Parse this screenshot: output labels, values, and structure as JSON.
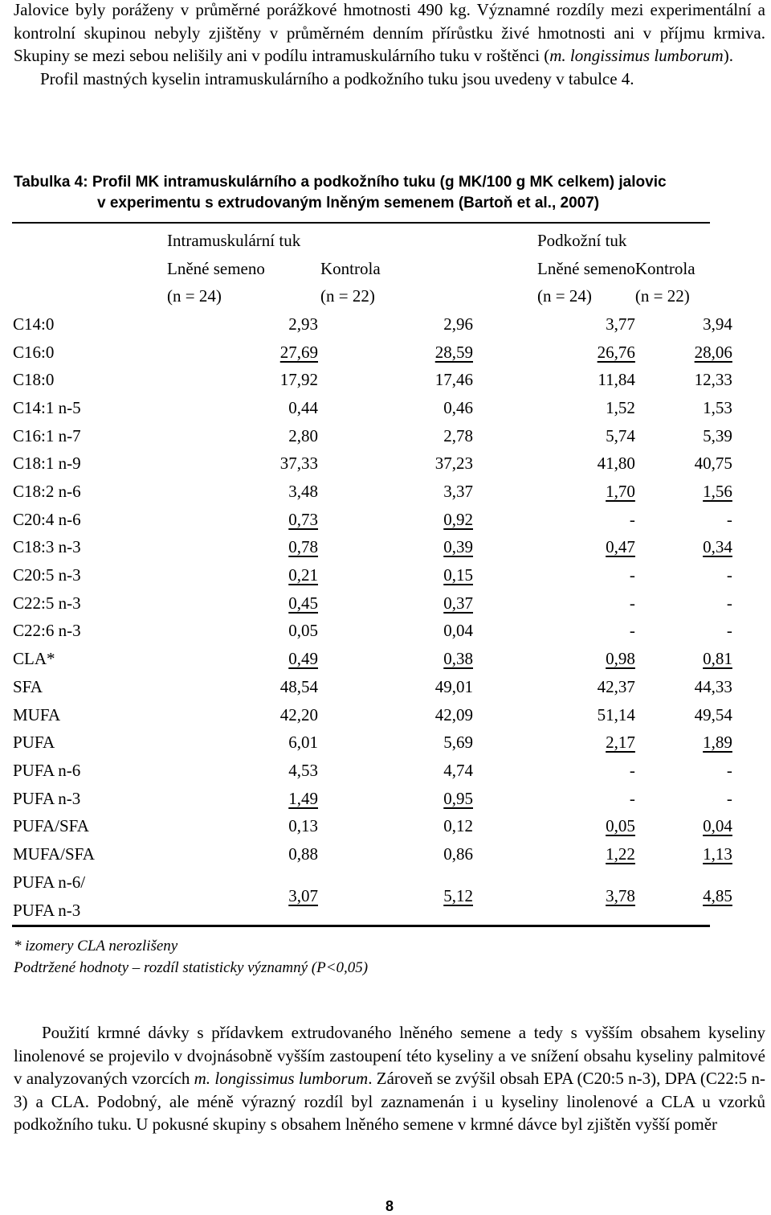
{
  "intro": {
    "sentence1": "Jalovice byly poráženy v průměrné porážkové hmotnosti 490 kg. Významné rozdíly mezi experimentální a kontrolní skupinou nebyly zjištěny v průměrném denním přírůstku živé hmotnosti ani v příjmu krmiva. Skupiny se mezi sebou nelišily ani v podílu intramuskulárního tuku v roštěnci (",
    "sentence1_italic": "m. longissimus lumborum",
    "sentence1_end": ").",
    "sentence2": "Profil mastných kyselin intramuskulárního a podkožního tuku jsou uvedeny v tabulce 4."
  },
  "caption": {
    "line1": "Tabulka 4: Profil MK intramuskulárního a podkožního tuku (g MK/100 g MK celkem) jalovic",
    "line2": "v experimentu s extrudovaným lněným semenem (Bartoň et al., 2007)"
  },
  "table": {
    "group_intramuscular": "Intramuskulární tuk",
    "group_subcutaneous": "Podkožní tuk",
    "col_flax": "Lněné semeno",
    "col_control": "Kontrola",
    "n24": "(n = 24)",
    "n22": "(n = 22)",
    "rows": [
      {
        "label": "C14:0",
        "v": [
          "2,93",
          "2,96",
          "3,77",
          "3,94"
        ],
        "u": [
          false,
          false,
          false,
          false
        ]
      },
      {
        "label": "C16:0",
        "v": [
          "27,69",
          "28,59",
          "26,76",
          "28,06"
        ],
        "u": [
          true,
          true,
          true,
          true
        ]
      },
      {
        "label": "C18:0",
        "v": [
          "17,92",
          "17,46",
          "11,84",
          "12,33"
        ],
        "u": [
          false,
          false,
          false,
          false
        ]
      },
      {
        "label": "C14:1 n-5",
        "v": [
          "0,44",
          "0,46",
          "1,52",
          "1,53"
        ],
        "u": [
          false,
          false,
          false,
          false
        ]
      },
      {
        "label": "C16:1 n-7",
        "v": [
          "2,80",
          "2,78",
          "5,74",
          "5,39"
        ],
        "u": [
          false,
          false,
          false,
          false
        ]
      },
      {
        "label": "C18:1 n-9",
        "v": [
          "37,33",
          "37,23",
          "41,80",
          "40,75"
        ],
        "u": [
          false,
          false,
          false,
          false
        ]
      },
      {
        "label": "C18:2 n-6",
        "v": [
          "3,48",
          "3,37",
          "1,70",
          "1,56"
        ],
        "u": [
          false,
          false,
          true,
          true
        ]
      },
      {
        "label": "C20:4 n-6",
        "v": [
          "0,73",
          "0,92",
          "-",
          "-"
        ],
        "u": [
          true,
          true,
          false,
          false
        ]
      },
      {
        "label": "C18:3 n-3",
        "v": [
          "0,78",
          "0,39",
          "0,47",
          "0,34"
        ],
        "u": [
          true,
          true,
          true,
          true
        ]
      },
      {
        "label": "C20:5 n-3",
        "v": [
          "0,21",
          "0,15",
          "-",
          "-"
        ],
        "u": [
          true,
          true,
          false,
          false
        ]
      },
      {
        "label": "C22:5 n-3",
        "v": [
          "0,45",
          "0,37",
          "-",
          "-"
        ],
        "u": [
          true,
          true,
          false,
          false
        ]
      },
      {
        "label": "C22:6 n-3",
        "v": [
          "0,05",
          "0,04",
          "-",
          "-"
        ],
        "u": [
          false,
          false,
          false,
          false
        ]
      },
      {
        "label": "CLA*",
        "v": [
          "0,49",
          "0,38",
          "0,98",
          "0,81"
        ],
        "u": [
          true,
          true,
          true,
          true
        ]
      },
      {
        "label": "SFA",
        "v": [
          "48,54",
          "49,01",
          "42,37",
          "44,33"
        ],
        "u": [
          false,
          false,
          false,
          false
        ]
      },
      {
        "label": "MUFA",
        "v": [
          "42,20",
          "42,09",
          "51,14",
          "49,54"
        ],
        "u": [
          false,
          false,
          false,
          false
        ]
      },
      {
        "label": "PUFA",
        "v": [
          "6,01",
          "5,69",
          "2,17",
          "1,89"
        ],
        "u": [
          false,
          false,
          true,
          true
        ]
      },
      {
        "label": "PUFA n-6",
        "v": [
          "4,53",
          "4,74",
          "-",
          "-"
        ],
        "u": [
          false,
          false,
          false,
          false
        ]
      },
      {
        "label": "PUFA n-3",
        "v": [
          "1,49",
          "0,95",
          "-",
          "-"
        ],
        "u": [
          true,
          true,
          false,
          false
        ]
      },
      {
        "label": "PUFA/SFA",
        "v": [
          "0,13",
          "0,12",
          "0,05",
          "0,04"
        ],
        "u": [
          false,
          false,
          true,
          true
        ]
      },
      {
        "label": "MUFA/SFA",
        "v": [
          "0,88",
          "0,86",
          "1,22",
          "1,13"
        ],
        "u": [
          false,
          false,
          true,
          true
        ]
      }
    ],
    "last_row": {
      "label_line1": "PUFA n-6/",
      "label_line2": "PUFA n-3",
      "v": [
        "3,07",
        "5,12",
        "3,78",
        "4,85"
      ],
      "u": [
        true,
        true,
        true,
        true
      ]
    }
  },
  "notes": {
    "line1": "* izomery CLA nerozlišeny",
    "line2": "Podtržené hodnoty – rozdíl statisticky významný (P<0,05)"
  },
  "outro": {
    "text_a": "Použití krmné dávky s přídavkem extrudovaného lněného semene a tedy s vyšším obsahem kyseliny linolenové se projevilo v dvojnásobně vyšším zastoupení této kyseliny a ve snížení obsahu kyseliny palmitové v analyzovaných vzorcích ",
    "text_italic": "m. longissimus lumborum",
    "text_b": ". Zároveň se zvýšil obsah EPA (C20:5 n-3), DPA (C22:5 n-3) a CLA. Podobný, ale méně výrazný rozdíl byl zaznamenán i u kyseliny linolenové a CLA u vzorků podkožního tuku. U pokusné skupiny s obsahem lněného semene v krmné dávce byl zjištěn vyšší poměr"
  },
  "page_number": "8"
}
